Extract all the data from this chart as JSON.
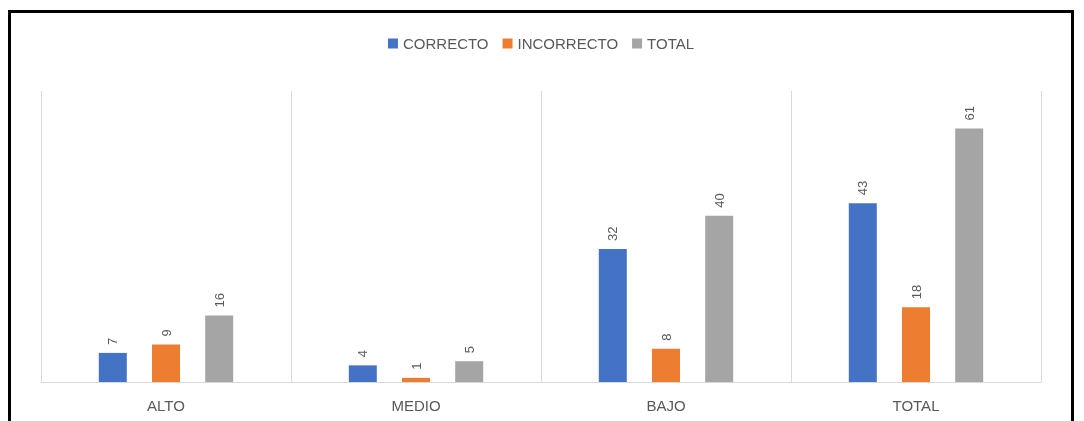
{
  "chart_data": {
    "type": "bar",
    "categories": [
      "ALTO",
      "MEDIO",
      "BAJO",
      "TOTAL"
    ],
    "series": [
      {
        "name": "CORRECTO",
        "color": "#4472c4",
        "values": [
          7,
          4,
          32,
          43
        ]
      },
      {
        "name": "INCORRECTO",
        "color": "#ed7d31",
        "values": [
          9,
          1,
          8,
          18
        ]
      },
      {
        "name": "TOTAL",
        "color": "#a5a5a5",
        "values": [
          16,
          5,
          40,
          61
        ]
      }
    ],
    "data_labels": true,
    "grid": "x",
    "legend": "top"
  }
}
